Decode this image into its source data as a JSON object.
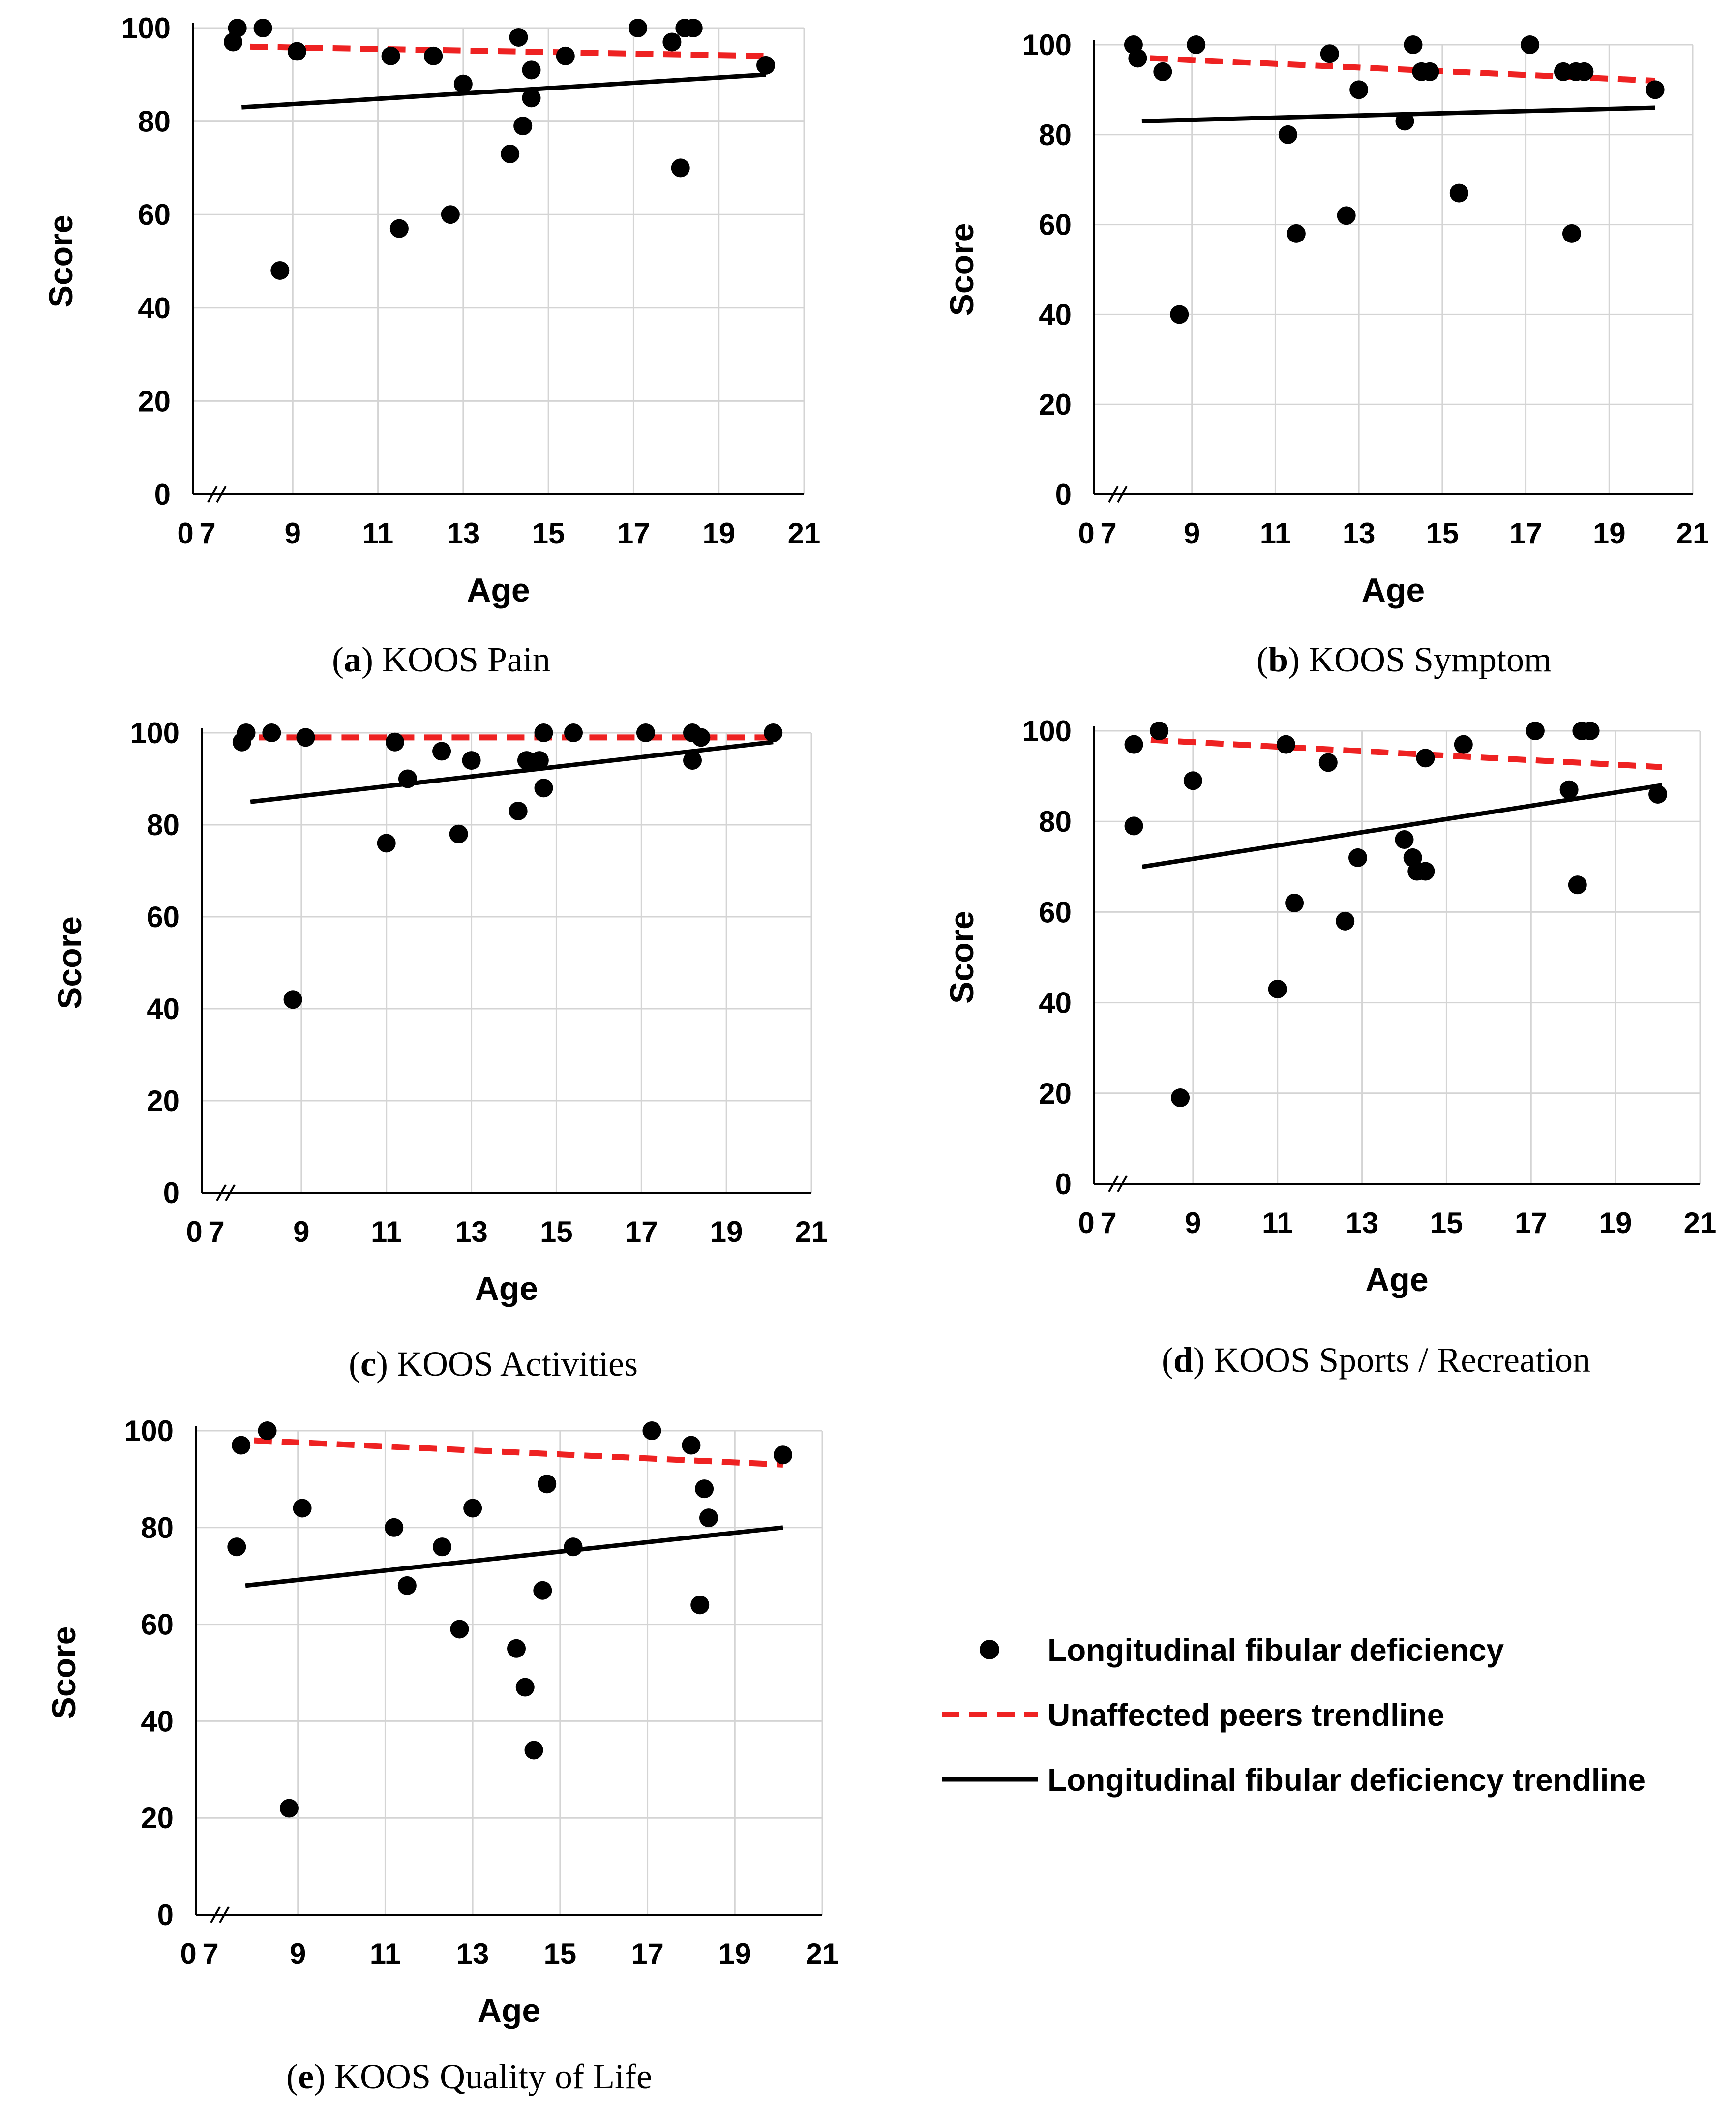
{
  "legend": {
    "points": "Longitudinal fibular deficiency",
    "peers": "Unaffected peers trendline",
    "lfd_trend": "Longitudinal fibular deficiency trendline"
  },
  "colors": {
    "points": "#000000",
    "peers_trend": "#ee2222",
    "lfd_trend": "#000000",
    "grid": "#d4d4d4"
  },
  "chart_data": [
    {
      "id": "a",
      "type": "scatter",
      "caption_letter": "a",
      "caption_text": "KOOS Pain",
      "xlabel": "Age",
      "ylabel": "Score",
      "xlim": [
        7,
        21
      ],
      "ylim": [
        0,
        100
      ],
      "x_ticks": [
        7,
        9,
        11,
        13,
        15,
        17,
        19,
        21
      ],
      "y_ticks": [
        0,
        20,
        40,
        60,
        80,
        100
      ],
      "x_origin_label": "0",
      "points": [
        [
          7.6,
          97
        ],
        [
          7.7,
          100
        ],
        [
          8.3,
          100
        ],
        [
          8.7,
          48
        ],
        [
          9.1,
          95
        ],
        [
          11.3,
          94
        ],
        [
          11.5,
          57
        ],
        [
          12.3,
          94
        ],
        [
          12.7,
          60
        ],
        [
          13.0,
          88
        ],
        [
          14.1,
          73
        ],
        [
          14.3,
          98
        ],
        [
          14.4,
          79
        ],
        [
          14.6,
          85
        ],
        [
          14.6,
          91
        ],
        [
          15.4,
          94
        ],
        [
          17.1,
          100
        ],
        [
          17.9,
          97
        ],
        [
          18.1,
          70
        ],
        [
          18.2,
          100
        ],
        [
          18.4,
          100
        ],
        [
          20.1,
          92
        ]
      ],
      "peers_trend": [
        [
          8.0,
          96
        ],
        [
          20.1,
          94
        ]
      ],
      "lfd_trend": [
        [
          7.8,
          83
        ],
        [
          20.1,
          90
        ]
      ]
    },
    {
      "id": "b",
      "type": "scatter",
      "caption_letter": "b",
      "caption_text": "KOOS Symptom",
      "xlabel": "Age",
      "ylabel": "Score",
      "xlim": [
        7,
        21
      ],
      "ylim": [
        0,
        100
      ],
      "x_ticks": [
        7,
        9,
        11,
        13,
        15,
        17,
        19,
        21
      ],
      "y_ticks": [
        0,
        20,
        40,
        60,
        80,
        100
      ],
      "x_origin_label": "0",
      "points": [
        [
          7.6,
          100
        ],
        [
          7.7,
          97
        ],
        [
          8.3,
          94
        ],
        [
          8.7,
          40
        ],
        [
          9.1,
          100
        ],
        [
          11.3,
          80
        ],
        [
          11.5,
          58
        ],
        [
          12.3,
          98
        ],
        [
          12.7,
          62
        ],
        [
          13.0,
          90
        ],
        [
          14.1,
          83
        ],
        [
          14.3,
          100
        ],
        [
          14.5,
          94
        ],
        [
          14.7,
          94
        ],
        [
          15.4,
          67
        ],
        [
          17.1,
          100
        ],
        [
          17.9,
          94
        ],
        [
          18.1,
          58
        ],
        [
          18.2,
          94
        ],
        [
          18.4,
          94
        ],
        [
          20.1,
          90
        ]
      ],
      "peers_trend": [
        [
          8.0,
          97
        ],
        [
          20.1,
          92
        ]
      ],
      "lfd_trend": [
        [
          7.8,
          83
        ],
        [
          20.1,
          86
        ]
      ]
    },
    {
      "id": "c",
      "type": "scatter",
      "caption_letter": "c",
      "caption_text": "KOOS Activities",
      "xlabel": "Age",
      "ylabel": "Score",
      "xlim": [
        7,
        21
      ],
      "ylim": [
        0,
        100
      ],
      "x_ticks": [
        7,
        9,
        11,
        13,
        15,
        17,
        19,
        21
      ],
      "y_ticks": [
        0,
        20,
        40,
        60,
        80,
        100
      ],
      "x_origin_label": "0",
      "points": [
        [
          7.6,
          98
        ],
        [
          7.7,
          100
        ],
        [
          8.3,
          100
        ],
        [
          8.8,
          42
        ],
        [
          9.1,
          99
        ],
        [
          11.0,
          76
        ],
        [
          11.2,
          98
        ],
        [
          11.5,
          90
        ],
        [
          12.3,
          96
        ],
        [
          12.7,
          78
        ],
        [
          13.0,
          94
        ],
        [
          14.1,
          83
        ],
        [
          14.3,
          94
        ],
        [
          14.6,
          94
        ],
        [
          14.7,
          88
        ],
        [
          14.7,
          100
        ],
        [
          15.4,
          100
        ],
        [
          17.1,
          100
        ],
        [
          18.2,
          94
        ],
        [
          18.2,
          100
        ],
        [
          18.4,
          99
        ],
        [
          20.1,
          100
        ]
      ],
      "peers_trend": [
        [
          8.0,
          99
        ],
        [
          20.1,
          99
        ]
      ],
      "lfd_trend": [
        [
          7.8,
          85
        ],
        [
          20.1,
          98
        ]
      ]
    },
    {
      "id": "d",
      "type": "scatter",
      "caption_letter": "d",
      "caption_text": "KOOS Sports / Recreation",
      "xlabel": "Age",
      "ylabel": "Score",
      "xlim": [
        7,
        21
      ],
      "ylim": [
        0,
        100
      ],
      "x_ticks": [
        7,
        9,
        11,
        13,
        15,
        17,
        19,
        21
      ],
      "y_ticks": [
        0,
        20,
        40,
        60,
        80,
        100
      ],
      "x_origin_label": "0",
      "points": [
        [
          7.6,
          97
        ],
        [
          7.6,
          79
        ],
        [
          8.2,
          100
        ],
        [
          8.7,
          19
        ],
        [
          9.0,
          89
        ],
        [
          11.0,
          43
        ],
        [
          11.2,
          97
        ],
        [
          11.4,
          62
        ],
        [
          12.2,
          93
        ],
        [
          12.6,
          58
        ],
        [
          12.9,
          72
        ],
        [
          14.0,
          76
        ],
        [
          14.2,
          72
        ],
        [
          14.3,
          69
        ],
        [
          14.5,
          94
        ],
        [
          14.5,
          69
        ],
        [
          15.4,
          97
        ],
        [
          17.1,
          100
        ],
        [
          17.9,
          87
        ],
        [
          18.1,
          66
        ],
        [
          18.2,
          100
        ],
        [
          18.4,
          100
        ],
        [
          20.0,
          86
        ]
      ],
      "peers_trend": [
        [
          8.0,
          98
        ],
        [
          20.1,
          92
        ]
      ],
      "lfd_trend": [
        [
          7.8,
          70
        ],
        [
          20.1,
          88
        ]
      ]
    },
    {
      "id": "e",
      "type": "scatter",
      "caption_letter": "e",
      "caption_text": "KOOS Quality of Life",
      "xlabel": "Age",
      "ylabel": "Score",
      "xlim": [
        7,
        21
      ],
      "ylim": [
        0,
        100
      ],
      "x_ticks": [
        7,
        9,
        11,
        13,
        15,
        17,
        19,
        21
      ],
      "y_ticks": [
        0,
        20,
        40,
        60,
        80,
        100
      ],
      "x_origin_label": "0",
      "points": [
        [
          7.6,
          76
        ],
        [
          7.7,
          97
        ],
        [
          8.3,
          100
        ],
        [
          8.8,
          22
        ],
        [
          9.1,
          84
        ],
        [
          11.2,
          80
        ],
        [
          11.5,
          68
        ],
        [
          12.3,
          76
        ],
        [
          12.7,
          59
        ],
        [
          13.0,
          84
        ],
        [
          14.0,
          55
        ],
        [
          14.2,
          47
        ],
        [
          14.4,
          34
        ],
        [
          14.6,
          67
        ],
        [
          14.7,
          89
        ],
        [
          15.3,
          76
        ],
        [
          17.1,
          100
        ],
        [
          18.0,
          97
        ],
        [
          18.2,
          64
        ],
        [
          18.3,
          88
        ],
        [
          18.4,
          82
        ],
        [
          20.1,
          95
        ]
      ],
      "peers_trend": [
        [
          8.0,
          98
        ],
        [
          20.1,
          93
        ]
      ],
      "lfd_trend": [
        [
          7.8,
          68
        ],
        [
          20.1,
          80
        ]
      ]
    }
  ]
}
